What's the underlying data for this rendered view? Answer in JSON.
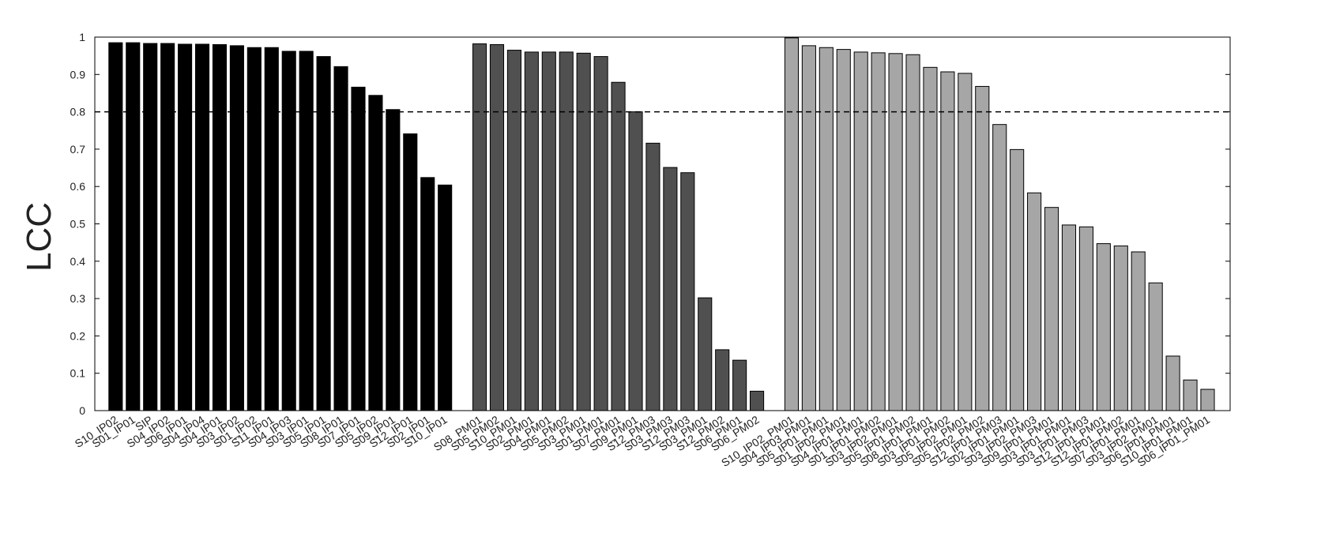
{
  "chart_data": {
    "type": "bar",
    "ylabel": "LCC",
    "ylim": [
      0,
      1
    ],
    "yticks": [
      0,
      0.1,
      0.2,
      0.3,
      0.4,
      0.5,
      0.6,
      0.7,
      0.8,
      0.9,
      1
    ],
    "reference_line": 0.8,
    "series": [
      {
        "color": "#000000",
        "categories": [
          "S10_IP02",
          "S01_IP01",
          "SIP",
          "S04_IP02",
          "S06_IP01",
          "S04_IP04",
          "S04_IP01",
          "S03_IP02",
          "S01_IP02",
          "S11_IP01",
          "S04_IP03",
          "S03_IP01",
          "S05_IP01",
          "S08_IP01",
          "S07_IP01",
          "S05_IP02",
          "S09_IP01",
          "S12_IP01",
          "S02_IP01",
          "S10_IP01"
        ],
        "values": [
          0.985,
          0.985,
          0.983,
          0.983,
          0.981,
          0.981,
          0.98,
          0.977,
          0.972,
          0.972,
          0.962,
          0.962,
          0.948,
          0.921,
          0.866,
          0.844,
          0.806,
          0.741,
          0.624,
          0.604
        ]
      },
      {
        "color": "#505050",
        "categories": [
          "S08_PM01",
          "S05_PM02",
          "S10_PM01",
          "S02_PM01",
          "S04_PM01",
          "S05_PM02",
          "S03_PM01",
          "S01_PM01",
          "S07_PM01",
          "S09_PM01",
          "S12_PM03",
          "S03_PM03",
          "S12_PM03",
          "S03_PM01",
          "S12_PM02",
          "S06_PM01",
          "S06_PM02"
        ],
        "values": [
          0.982,
          0.98,
          0.965,
          0.96,
          0.96,
          0.96,
          0.957,
          0.948,
          0.879,
          0.8,
          0.716,
          0.651,
          0.637,
          0.302,
          0.163,
          0.135,
          0.052
        ]
      },
      {
        "color": "#a6a6a6",
        "categories": [
          "S10_IP02_PM01",
          "S04_IP03_PM01",
          "S05_IP01_PM01",
          "S01_IP02_PM01",
          "S04_IP01_PM01",
          "S01_IP01_PM02",
          "S03_IP02_PM01",
          "S05_IP01_PM02",
          "S08_IP01_PM01",
          "S03_IP01_PM02",
          "S05_IP02_PM01",
          "S05_IP02_PM02",
          "S12_IP01_PM03",
          "S02_IP01_PM01",
          "S03_IP02_PM03",
          "S09_IP01_PM01",
          "S03_IP01_PM01",
          "S03_IP01_PM03",
          "S12_IP01_PM01",
          "S12_IP01_PM02",
          "S07_IP01_PM01",
          "S03_IP02_PM01",
          "S06_IP01_PM01",
          "S10_IP01_PM01",
          "S06_IP01_PM01"
        ],
        "values": [
          0.998,
          0.977,
          0.972,
          0.967,
          0.96,
          0.958,
          0.956,
          0.953,
          0.919,
          0.907,
          0.903,
          0.868,
          0.766,
          0.699,
          0.583,
          0.544,
          0.497,
          0.492,
          0.447,
          0.441,
          0.425,
          0.342,
          0.146,
          0.082,
          0.057
        ]
      }
    ]
  }
}
